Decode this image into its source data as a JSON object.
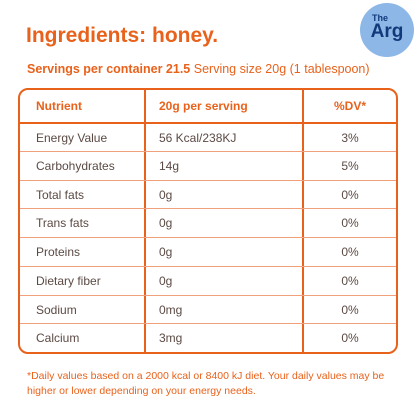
{
  "header": {
    "title": "Ingredients: honey.",
    "logo": {
      "top": "The",
      "bottom": "Arg"
    }
  },
  "servings": {
    "per_container": "Servings per container 21.5",
    "size": "Serving size 20g (1 tablespoon)"
  },
  "table": {
    "columns": [
      "Nutrient",
      "20g per serving",
      "%DV*"
    ],
    "rows": [
      [
        "Energy Value",
        "56 Kcal/238KJ",
        "3%"
      ],
      [
        "Carbohydrates",
        "14g",
        "5%"
      ],
      [
        "Total fats",
        "0g",
        "0%"
      ],
      [
        "Trans fats",
        "0g",
        "0%"
      ],
      [
        "Proteins",
        "0g",
        "0%"
      ],
      [
        "Dietary fiber",
        "0g",
        "0%"
      ],
      [
        "Sodium",
        "0mg",
        "0%"
      ],
      [
        "Calcium",
        "3mg",
        "0%"
      ]
    ]
  },
  "footnote": "*Daily values based on a 2000 kcal or 8400 kJ diet. Your daily values may be higher or lower depending on your energy needs."
}
